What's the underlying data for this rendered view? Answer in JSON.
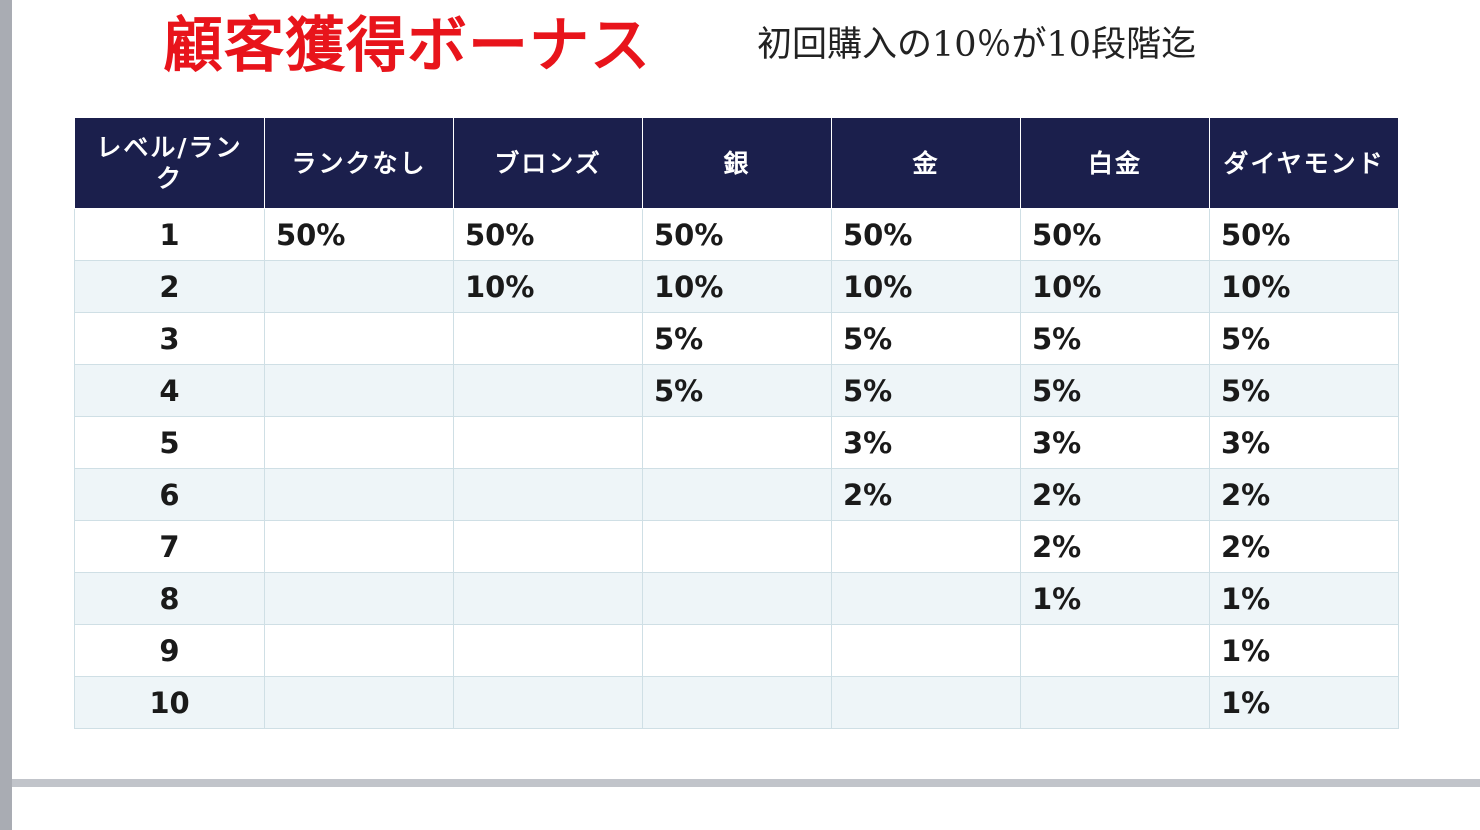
{
  "title": "顧客獲得ボーナス",
  "subtitle": "初回購入の10％が10段階迄",
  "table": {
    "headers": [
      "レベル/ランク",
      "ランクなし",
      "ブロンズ",
      "銀",
      "金",
      "白金",
      "ダイヤモンド"
    ],
    "rows": [
      [
        "1",
        "50%",
        "50%",
        "50%",
        "50%",
        "50%",
        "50%"
      ],
      [
        "2",
        "",
        "10%",
        "10%",
        "10%",
        "10%",
        "10%"
      ],
      [
        "3",
        "",
        "",
        "5%",
        "5%",
        "5%",
        "5%"
      ],
      [
        "4",
        "",
        "",
        "5%",
        "5%",
        "5%",
        "5%"
      ],
      [
        "5",
        "",
        "",
        "",
        "3%",
        "3%",
        "3%"
      ],
      [
        "6",
        "",
        "",
        "",
        "2%",
        "2%",
        "2%"
      ],
      [
        "7",
        "",
        "",
        "",
        "",
        "2%",
        "2%"
      ],
      [
        "8",
        "",
        "",
        "",
        "",
        "1%",
        "1%"
      ],
      [
        "9",
        "",
        "",
        "",
        "",
        "",
        "1%"
      ],
      [
        "10",
        "",
        "",
        "",
        "",
        "",
        "1%"
      ]
    ]
  },
  "colors": {
    "title": "#e8141b",
    "header_bg": "#1b1f4c",
    "row_alt_bg": "#eef5f8"
  }
}
